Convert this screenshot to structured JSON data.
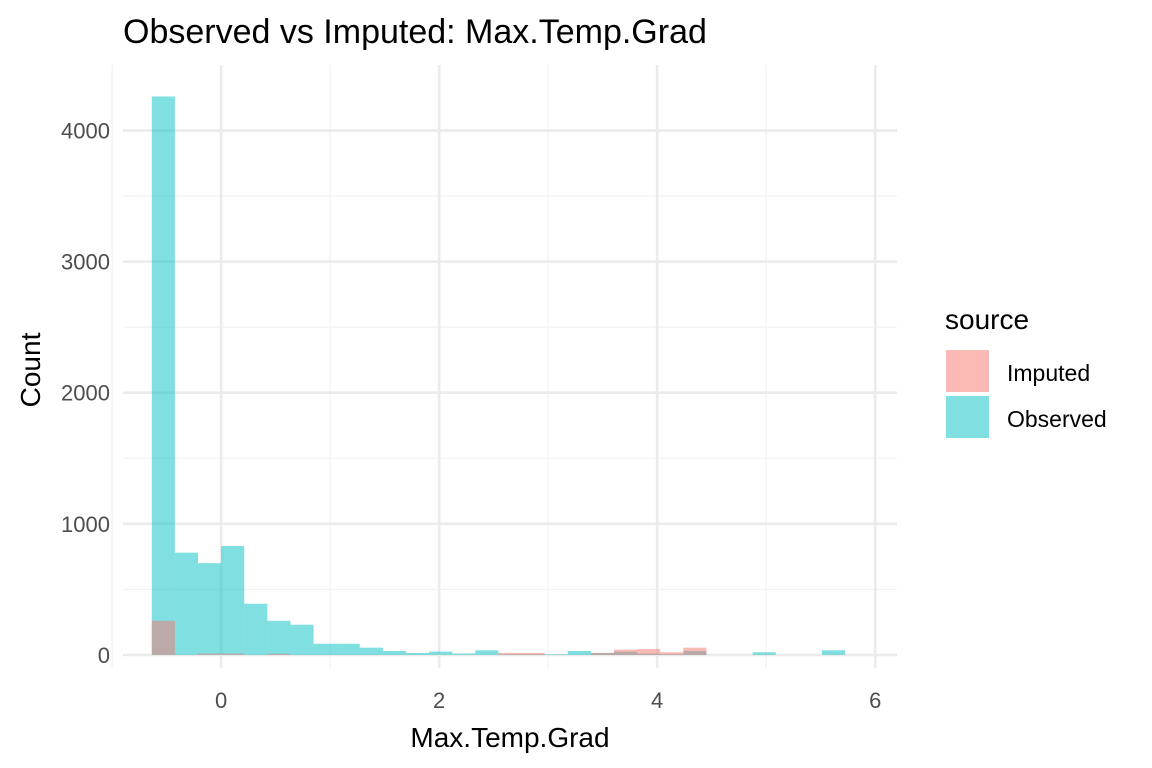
{
  "chart_data": {
    "type": "bar",
    "title": "Observed vs Imputed: Max.Temp.Grad",
    "xlabel": "Max.Temp.Grad",
    "ylabel": "Count",
    "xlim": [
      -0.9,
      6.2
    ],
    "ylim": [
      -100,
      4500
    ],
    "x_ticks": [
      0,
      2,
      4,
      6
    ],
    "y_ticks": [
      0,
      1000,
      2000,
      3000,
      4000
    ],
    "x_tick_labels": [
      "0",
      "2",
      "4",
      "6"
    ],
    "y_tick_labels": [
      "0",
      "1000",
      "2000",
      "3000",
      "4000"
    ],
    "grid": true,
    "bin_width": 0.212,
    "legend": {
      "title": "source",
      "position": "right",
      "items": [
        {
          "label": "Imputed",
          "color": "#F8766D"
        },
        {
          "label": "Observed",
          "color": "#00BFC4"
        }
      ]
    },
    "series": [
      {
        "name": "Observed",
        "color": "#00BFC4",
        "bins": [
          {
            "x": -0.53,
            "count": 4260
          },
          {
            "x": -0.318,
            "count": 780
          },
          {
            "x": -0.106,
            "count": 700
          },
          {
            "x": 0.106,
            "count": 830
          },
          {
            "x": 0.318,
            "count": 390
          },
          {
            "x": 0.53,
            "count": 260
          },
          {
            "x": 0.742,
            "count": 230
          },
          {
            "x": 0.954,
            "count": 85
          },
          {
            "x": 1.166,
            "count": 85
          },
          {
            "x": 1.378,
            "count": 55
          },
          {
            "x": 1.59,
            "count": 30
          },
          {
            "x": 1.802,
            "count": 15
          },
          {
            "x": 2.014,
            "count": 25
          },
          {
            "x": 2.226,
            "count": 10
          },
          {
            "x": 2.438,
            "count": 35
          },
          {
            "x": 2.65,
            "count": 5
          },
          {
            "x": 2.862,
            "count": 5
          },
          {
            "x": 3.074,
            "count": 5
          },
          {
            "x": 3.286,
            "count": 30
          },
          {
            "x": 3.498,
            "count": 15
          },
          {
            "x": 3.71,
            "count": 25
          },
          {
            "x": 3.922,
            "count": 10
          },
          {
            "x": 4.134,
            "count": 5
          },
          {
            "x": 4.346,
            "count": 30
          },
          {
            "x": 4.982,
            "count": 20
          },
          {
            "x": 5.618,
            "count": 35
          }
        ]
      },
      {
        "name": "Imputed",
        "color": "#F8766D",
        "bins": [
          {
            "x": -0.53,
            "count": 260
          },
          {
            "x": -0.106,
            "count": 10
          },
          {
            "x": 0.106,
            "count": 10
          },
          {
            "x": 0.53,
            "count": 8
          },
          {
            "x": 2.65,
            "count": 15
          },
          {
            "x": 2.862,
            "count": 15
          },
          {
            "x": 3.498,
            "count": 15
          },
          {
            "x": 3.71,
            "count": 40
          },
          {
            "x": 3.922,
            "count": 45
          },
          {
            "x": 4.134,
            "count": 20
          },
          {
            "x": 4.346,
            "count": 55
          }
        ]
      }
    ]
  }
}
